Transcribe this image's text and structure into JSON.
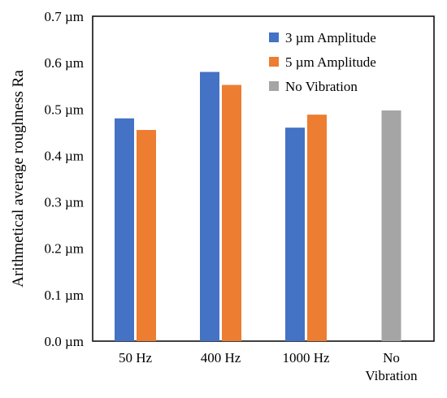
{
  "chart_data": {
    "type": "bar",
    "title": "",
    "xlabel": "",
    "ylabel": "Arithmetical average roughness Ra",
    "ylim": [
      0,
      0.7
    ],
    "yticks": [
      "0.0 µm",
      "0.1 µm",
      "0.2 µm",
      "0.3 µm",
      "0.4 µm",
      "0.5 µm",
      "0.6 µm",
      "0.7 µm"
    ],
    "categories": [
      [
        "50 Hz"
      ],
      [
        "400 Hz"
      ],
      [
        "1000 Hz"
      ],
      [
        "No",
        "Vibration"
      ]
    ],
    "series": [
      {
        "name": "3 µm Amplitude",
        "color": "#4472C4",
        "values": [
          0.48,
          0.58,
          0.46,
          null
        ]
      },
      {
        "name": "5 µm Amplitude",
        "color": "#ED7D31",
        "values": [
          0.455,
          0.552,
          0.488,
          null
        ]
      },
      {
        "name": "No Vibration",
        "color": "#A5A5A5",
        "values": [
          null,
          null,
          null,
          0.497
        ]
      }
    ],
    "legend": "top-right",
    "grid": false
  }
}
